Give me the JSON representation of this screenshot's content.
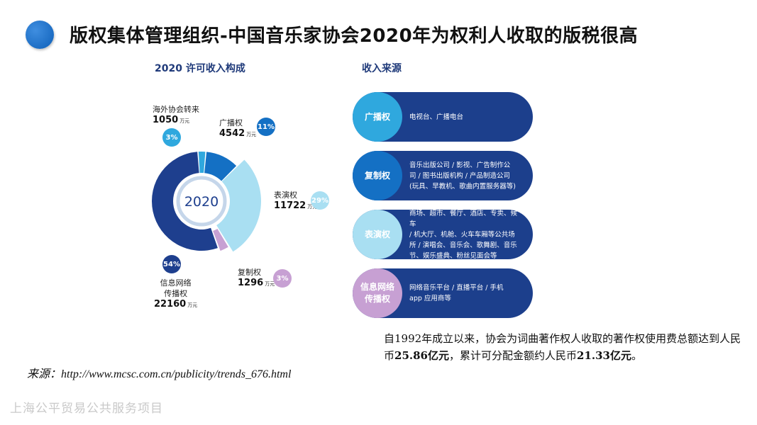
{
  "title": "版权集体管理组织-中国音乐家协会2020年为权利人收取的版税很高",
  "chart_title": "2020 许可收入构成",
  "sources_title": "收入来源",
  "chart_data": {
    "type": "pie",
    "title": "2020 许可收入构成",
    "center_label": "2020",
    "unit": "万元",
    "slices": [
      {
        "name": "广播权",
        "value": 4542,
        "percent": "11%",
        "color": "#1470c4"
      },
      {
        "name": "表演权",
        "value": 11722,
        "percent": "29%",
        "color": "#a9dff2"
      },
      {
        "name": "复制权",
        "value": 1296,
        "percent": "3%",
        "color": "#c7a0d3"
      },
      {
        "name": "信息网络传播权",
        "value": 22160,
        "percent": "54%",
        "color": "#1e3f8e"
      },
      {
        "name": "海外协会转来",
        "value": 1050,
        "percent": "3%",
        "color": "#2fa8de"
      }
    ]
  },
  "labels": {
    "overseas": {
      "line1": "海外协会转来",
      "value": "1050",
      "unit": "万元",
      "pct": "3%"
    },
    "broadcast": {
      "line1": "广播权",
      "value": "4542",
      "unit": "万元",
      "pct": "11%"
    },
    "performance": {
      "line1": "表演权",
      "value": "11722",
      "unit": "万元",
      "pct": "29%"
    },
    "copy": {
      "line1": "复制权",
      "value": "1296",
      "unit": "万元",
      "pct": "3%"
    },
    "network": {
      "line1": "信息网络",
      "line2": "传播权",
      "value": "22160",
      "unit": "万元",
      "pct": "54%"
    }
  },
  "sources": [
    {
      "name": "广播权",
      "lines": [
        "电视台、广播电台"
      ],
      "color": "#2fa8de"
    },
    {
      "name": "复制权",
      "lines": [
        "音乐出版公司 / 影视、广告制作公",
        "司 / 图书出版机构 / 产品制造公司",
        "(玩具、早教机、歌曲内置服务器等)"
      ],
      "color": "#1470c4"
    },
    {
      "name": "表演权",
      "lines": [
        "商场、超市、餐厅、酒店、专卖、候车",
        "/ 机大厅、机舱、火车车厢等公共场",
        "所 / 演唱会、音乐会、歌舞剧、音乐",
        "节、娱乐盛典、粉丝见面会等"
      ],
      "color": "#a9dff2"
    },
    {
      "name_l1": "信息网络",
      "name_l2": "传播权",
      "lines": [
        "网络音乐平台 / 直播平台 / 手机",
        "app 应用商等"
      ],
      "color": "#c7a0d3"
    }
  ],
  "note": {
    "pre": "自1992年成立以来，协会为词曲著作权人收取的著作权使用费总额达到人民币",
    "amount1": "25.86亿元",
    "mid": "，累计可分配金额约人民币",
    "amount2": "21.33亿元",
    "post": "。"
  },
  "source_text": "来源：http://www.mcsc.com.cn/publicity/trends_676.html",
  "footer": "上海公平贸易公共服务项目"
}
